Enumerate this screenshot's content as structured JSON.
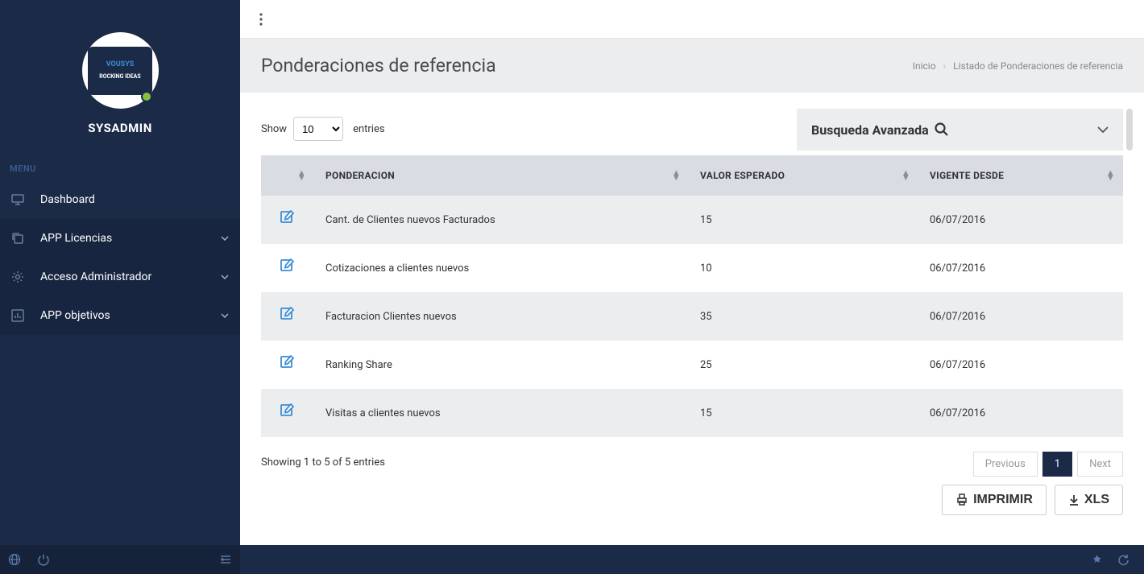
{
  "sidebar": {
    "username": "SYSADMIN",
    "menu_label": "MENU",
    "items": [
      {
        "label": "Dashboard",
        "expandable": false
      },
      {
        "label": "APP Licencias",
        "expandable": true
      },
      {
        "label": "Acceso Administrador",
        "expandable": true
      },
      {
        "label": "APP objetivos",
        "expandable": true
      }
    ],
    "logo_text_top": "VOUSYS",
    "logo_text_bottom": "ROCKING IDEAS"
  },
  "page": {
    "title": "Ponderaciones de referencia",
    "breadcrumb_root": "Inicio",
    "breadcrumb_current": "Listado de Ponderaciones de referencia"
  },
  "datatable": {
    "show_label": "Show",
    "entries_label": "entries",
    "length_value": "10",
    "advanced_search_label": "Busqueda Avanzada",
    "columns": {
      "action": "",
      "ponderacion": "PONDERACION",
      "valor": "VALOR ESPERADO",
      "vigente": "VIGENTE DESDE"
    },
    "rows": [
      {
        "ponderacion": "Cant. de Clientes nuevos Facturados",
        "valor": "15",
        "vigente": "06/07/2016"
      },
      {
        "ponderacion": "Cotizaciones a clientes nuevos",
        "valor": "10",
        "vigente": "06/07/2016"
      },
      {
        "ponderacion": "Facturacion Clientes nuevos",
        "valor": "35",
        "vigente": "06/07/2016"
      },
      {
        "ponderacion": "Ranking Share",
        "valor": "25",
        "vigente": "06/07/2016"
      },
      {
        "ponderacion": "Visitas a clientes nuevos",
        "valor": "15",
        "vigente": "06/07/2016"
      }
    ],
    "info_text": "Showing 1 to 5 of 5 entries",
    "pager_prev": "Previous",
    "pager_next": "Next",
    "pager_current": "1",
    "btn_print": "IMPRIMIR",
    "btn_xls": "XLS"
  },
  "colors": {
    "sidebar_bg": "#1b2a47",
    "sidebar_item_bg": "#172540",
    "header_bg": "#ecedef",
    "table_header_bg": "#d9dde3",
    "row_odd_bg": "#ecedef",
    "row_even_bg": "#ffffff",
    "accent": "#3b8dd6",
    "status_online": "#84c03f"
  }
}
